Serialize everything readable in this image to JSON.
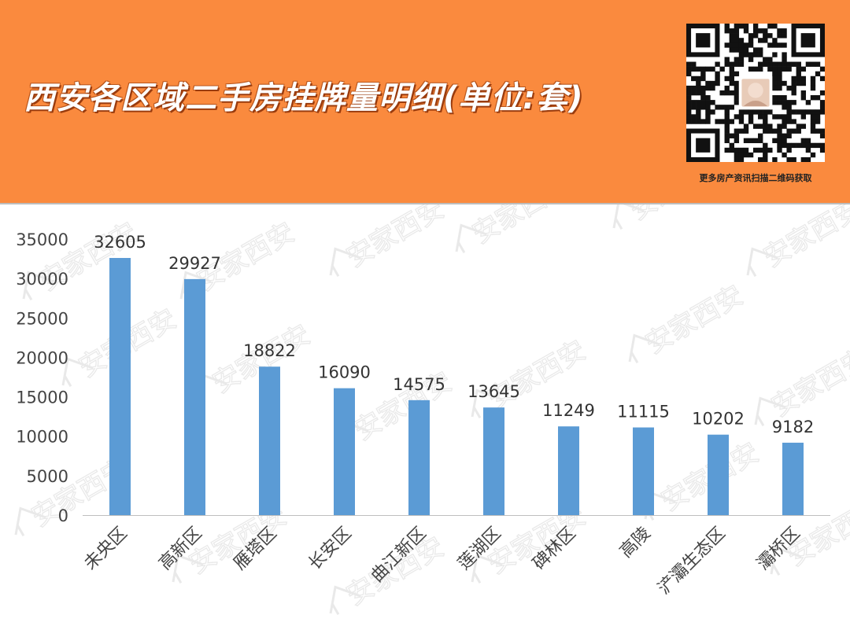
{
  "header": {
    "title": "西安各区域二手房挂牌量明细(单位:套)",
    "qr_caption": "更多房产资讯扫描二维码获取",
    "background_color": "#fa8a3e"
  },
  "watermark": {
    "text": "安家西安"
  },
  "chart_data": {
    "type": "bar",
    "title": "",
    "xlabel": "",
    "ylabel": "",
    "categories": [
      "未央区",
      "高新区",
      "雁塔区",
      "长安区",
      "曲江新区",
      "莲湖区",
      "碑林区",
      "高陵",
      "浐灞生态区",
      "灞桥区"
    ],
    "series": [
      {
        "values": [
          32605,
          29927,
          18822,
          16090,
          14575,
          13645,
          11249,
          11115,
          10202,
          9182
        ]
      }
    ],
    "ylim": [
      0,
      35000
    ],
    "yticks": [
      0,
      5000,
      10000,
      15000,
      20000,
      25000,
      30000,
      35000
    ],
    "bar_color": "#5b9bd5",
    "grid": false,
    "legend": "none",
    "data_labels": true
  }
}
